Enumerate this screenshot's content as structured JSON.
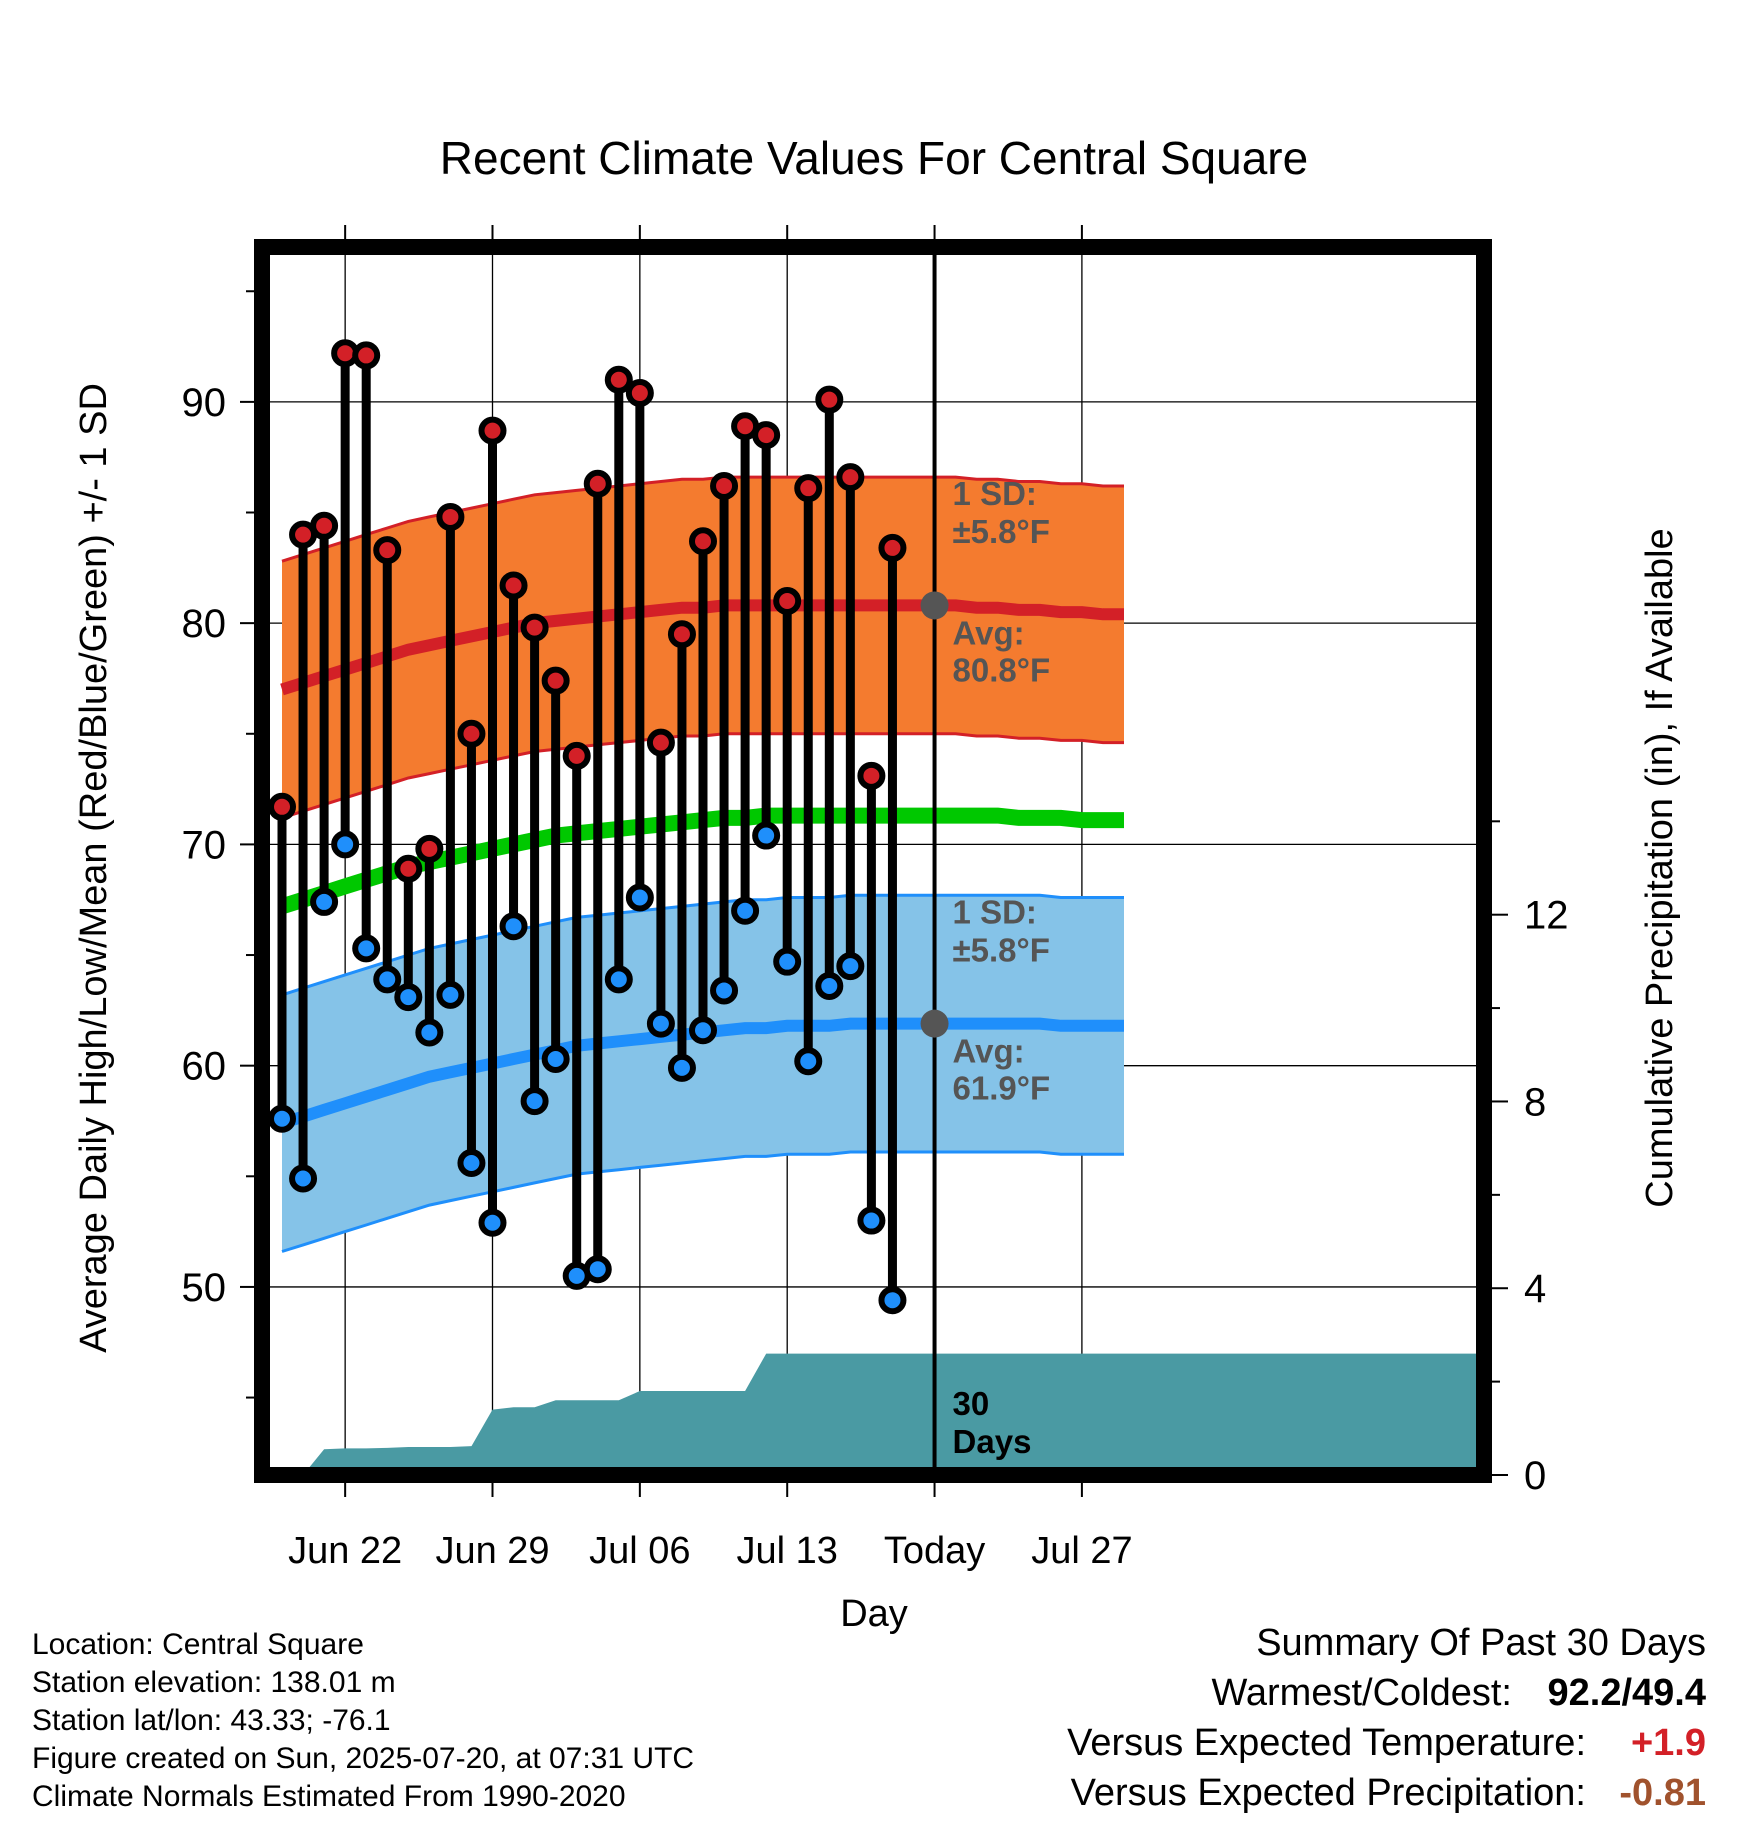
{
  "chart_data": {
    "type": "line",
    "title": "Recent Climate Values For Central Square",
    "xlabel": "Day",
    "ylabel": "Average Daily High/Low/Mean (Red/Blue/Green) +/- 1 SD",
    "y2label": "Cumulative Precipitation (in), If Available",
    "x_tick_labels": [
      "Jun 22",
      "Jun 29",
      "Jul 06",
      "Jul 13",
      "Today",
      "Jul 27"
    ],
    "y_ticks": [
      50,
      60,
      70,
      80,
      90
    ],
    "y2_ticks": [
      0,
      4,
      8,
      12
    ],
    "ylim": [
      41.5,
      97
    ],
    "y2lim": [
      0,
      26.3
    ],
    "x_dates_start": "2025-06-19",
    "x_dates_end": "2025-07-29",
    "grid": true,
    "daily_high": [
      71.7,
      84.0,
      84.4,
      92.2,
      92.1,
      83.3,
      68.9,
      69.8,
      84.8,
      75.0,
      88.7,
      81.7,
      79.8,
      77.4,
      74.0,
      86.3,
      91.0,
      90.4,
      74.6,
      79.5,
      83.7,
      86.2,
      88.9,
      88.5,
      81.0,
      86.1,
      90.1,
      86.6,
      73.1,
      83.4
    ],
    "daily_low": [
      57.6,
      54.9,
      67.4,
      70.0,
      65.3,
      63.9,
      63.1,
      61.5,
      63.2,
      55.6,
      52.9,
      66.3,
      58.4,
      60.3,
      50.5,
      50.8,
      63.9,
      67.6,
      61.9,
      59.9,
      61.6,
      63.4,
      67.0,
      70.4,
      64.7,
      60.2,
      63.6,
      64.5,
      53.0,
      49.4
    ],
    "normal_high": [
      77.0,
      77.3,
      77.6,
      77.9,
      78.2,
      78.5,
      78.8,
      79.0,
      79.2,
      79.4,
      79.6,
      79.8,
      80.0,
      80.1,
      80.2,
      80.3,
      80.4,
      80.5,
      80.6,
      80.7,
      80.7,
      80.8,
      80.8,
      80.8,
      80.8,
      80.8,
      80.8,
      80.8,
      80.8,
      80.8,
      80.8,
      80.8,
      80.8,
      80.7,
      80.7,
      80.6,
      80.6,
      80.5,
      80.5,
      80.4,
      80.4
    ],
    "normal_low": [
      57.4,
      57.7,
      58.0,
      58.3,
      58.6,
      58.9,
      59.2,
      59.5,
      59.7,
      59.9,
      60.1,
      60.3,
      60.5,
      60.7,
      60.9,
      61.0,
      61.1,
      61.2,
      61.3,
      61.4,
      61.5,
      61.6,
      61.7,
      61.7,
      61.8,
      61.8,
      61.8,
      61.9,
      61.9,
      61.9,
      61.9,
      61.9,
      61.9,
      61.9,
      61.9,
      61.9,
      61.9,
      61.8,
      61.8,
      61.8,
      61.8
    ],
    "normal_mean": [
      67.2,
      67.5,
      67.8,
      68.1,
      68.4,
      68.7,
      69.0,
      69.2,
      69.4,
      69.6,
      69.8,
      70.0,
      70.2,
      70.4,
      70.5,
      70.6,
      70.7,
      70.8,
      70.9,
      71.0,
      71.1,
      71.2,
      71.2,
      71.3,
      71.3,
      71.3,
      71.3,
      71.3,
      71.3,
      71.3,
      71.3,
      71.3,
      71.3,
      71.3,
      71.3,
      71.2,
      71.2,
      71.2,
      71.1,
      71.1,
      71.1
    ],
    "sd_high": 5.8,
    "sd_low": 5.8,
    "cumulative_precip": [
      0,
      0,
      0.55,
      0.57,
      0.57,
      0.58,
      0.6,
      0.6,
      0.6,
      0.62,
      1.4,
      1.45,
      1.45,
      1.6,
      1.6,
      1.6,
      1.6,
      1.8,
      1.8,
      1.8,
      1.8,
      1.8,
      1.8,
      2.6,
      2.6,
      2.6,
      2.6,
      2.6,
      2.6,
      2.6,
      2.6,
      2.6,
      2.6,
      2.6,
      2.6,
      2.6,
      2.6,
      2.6,
      2.6,
      2.6,
      2.6
    ],
    "colors": {
      "high_band": "#f47b2f",
      "high_line": "#d32027",
      "low_band": "#85c3e8",
      "low_line": "#1f8ffb",
      "mean_line": "#00c800",
      "precip": "#4a9aa3",
      "high_marker": "#d32027",
      "low_marker": "#1f8ffb"
    },
    "annotations": {
      "high_sd_label": "1 SD:",
      "high_sd_value": "±5.8°F",
      "high_avg_label": "Avg:",
      "high_avg_value": "80.8°F",
      "low_sd_label": "1 SD:",
      "low_sd_value": "±5.8°F",
      "low_avg_label": "Avg:",
      "low_avg_value": "61.9°F",
      "days_number": "30",
      "days_word": "Days"
    }
  },
  "info": {
    "location": "Location: Central Square",
    "elevation": "Station elevation: 138.01 m",
    "latlon": "Station lat/lon: 43.33; -76.1",
    "created": "Figure created on Sun, 2025-07-20, at 07:31 UTC",
    "normals": "Climate Normals Estimated From 1990-2020"
  },
  "summary": {
    "heading": "Summary Of Past 30 Days",
    "warm_cold_label": "Warmest/Coldest:",
    "warm_cold_value": "92.2/49.4",
    "temp_label": "Versus Expected Temperature:",
    "temp_value": "+1.9",
    "temp_color": "#d32027",
    "precip_label": "Versus Expected Precipitation:",
    "precip_value": "-0.81",
    "precip_color": "#a0522d"
  }
}
